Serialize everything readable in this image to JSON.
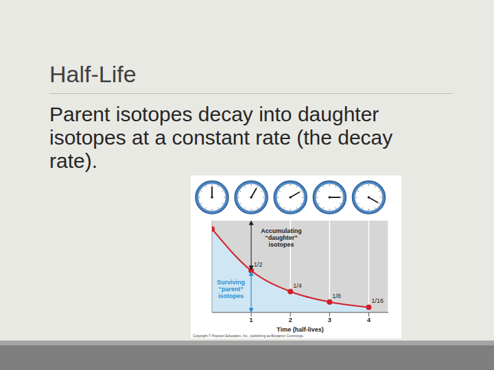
{
  "slide": {
    "title": "Half-Life",
    "body": "Parent isotopes decay into daughter isotopes at a constant rate (the decay rate)."
  },
  "chart_data": {
    "type": "area",
    "x": [
      0,
      1,
      2,
      3,
      4
    ],
    "values": [
      1,
      0.5,
      0.25,
      0.125,
      0.0625
    ],
    "value_labels": [
      null,
      "1/2",
      "1/4",
      "1/8",
      "1/16"
    ],
    "data_labels": true,
    "xlim": [
      0,
      4.5
    ],
    "ylim": [
      0,
      1.1
    ],
    "xticks": [
      1,
      2,
      3,
      4
    ],
    "x_label": "Time (half-lives)",
    "tick_labels": "x",
    "grid": true,
    "color": "#d0202a",
    "marker": "circle",
    "annotations": [
      "Accumulating “daughter” isotopes",
      "Surviving “parent” isotopes"
    ],
    "credit": "Copyright © Pearson Education, Inc., publishing as Benjamin Cummings."
  }
}
